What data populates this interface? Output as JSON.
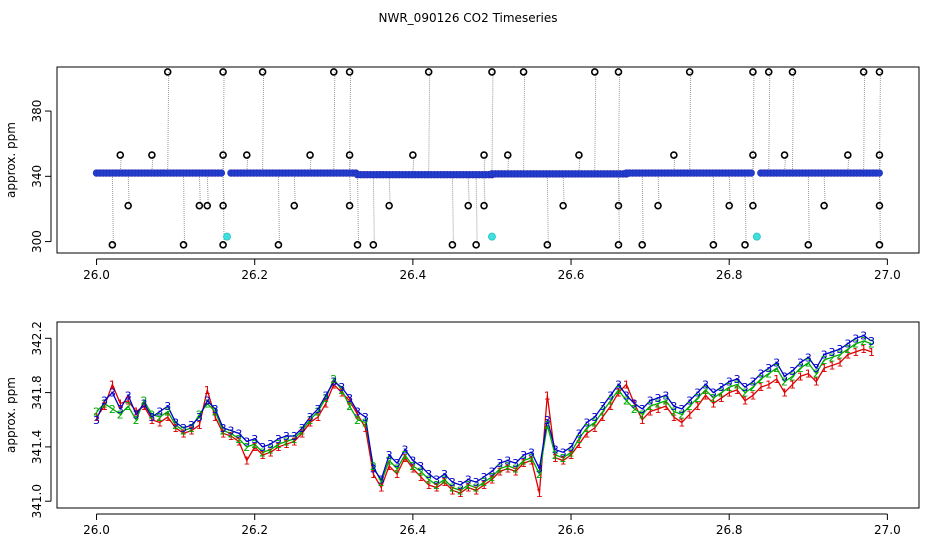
{
  "title": "NWR_090126  CO2 Timeseries",
  "chart_data": [
    {
      "type": "scatter",
      "ylabel": "approx. ppm",
      "xlim": [
        25.95,
        27.04
      ],
      "ylim": [
        293,
        407
      ],
      "xticks": [
        "26.0",
        "26.2",
        "26.4",
        "26.6",
        "26.8",
        "27.0"
      ],
      "xtick_values": [
        26.0,
        26.2,
        26.4,
        26.6,
        26.8,
        27.0
      ],
      "yticks": [
        "300",
        "340",
        "380"
      ],
      "ytick_values": [
        300,
        340,
        380
      ],
      "colors": {
        "open_circle": "#000000",
        "filled": "#1f3fd0",
        "highlight": "#40e0e0",
        "line": "#999999"
      },
      "baseline": [
        {
          "x_start": 26.0,
          "x_end": 26.16,
          "y": 342
        },
        {
          "x_start": 26.17,
          "x_end": 26.33,
          "y": 342
        },
        {
          "x_start": 26.33,
          "x_end": 26.5,
          "y": 341
        },
        {
          "x_start": 26.5,
          "x_end": 26.67,
          "y": 341.5
        },
        {
          "x_start": 26.67,
          "x_end": 26.83,
          "y": 342
        },
        {
          "x_start": 26.84,
          "x_end": 26.99,
          "y": 342
        }
      ],
      "outliers": [
        {
          "x": 26.02,
          "y": 298
        },
        {
          "x": 26.03,
          "y": 353
        },
        {
          "x": 26.04,
          "y": 322
        },
        {
          "x": 26.07,
          "y": 353
        },
        {
          "x": 26.09,
          "y": 404
        },
        {
          "x": 26.11,
          "y": 298
        },
        {
          "x": 26.13,
          "y": 322
        },
        {
          "x": 26.14,
          "y": 322
        },
        {
          "x": 26.16,
          "y": 298
        },
        {
          "x": 26.16,
          "y": 353
        },
        {
          "x": 26.16,
          "y": 322
        },
        {
          "x": 26.16,
          "y": 404
        },
        {
          "x": 26.19,
          "y": 353
        },
        {
          "x": 26.21,
          "y": 404
        },
        {
          "x": 26.23,
          "y": 298
        },
        {
          "x": 26.25,
          "y": 322
        },
        {
          "x": 26.27,
          "y": 353
        },
        {
          "x": 26.3,
          "y": 404
        },
        {
          "x": 26.32,
          "y": 404
        },
        {
          "x": 26.32,
          "y": 353
        },
        {
          "x": 26.32,
          "y": 322
        },
        {
          "x": 26.33,
          "y": 298
        },
        {
          "x": 26.35,
          "y": 298
        },
        {
          "x": 26.37,
          "y": 322
        },
        {
          "x": 26.4,
          "y": 353
        },
        {
          "x": 26.42,
          "y": 404
        },
        {
          "x": 26.45,
          "y": 298
        },
        {
          "x": 26.47,
          "y": 322
        },
        {
          "x": 26.48,
          "y": 298
        },
        {
          "x": 26.49,
          "y": 322
        },
        {
          "x": 26.49,
          "y": 353
        },
        {
          "x": 26.5,
          "y": 404
        },
        {
          "x": 26.52,
          "y": 353
        },
        {
          "x": 26.54,
          "y": 404
        },
        {
          "x": 26.57,
          "y": 298
        },
        {
          "x": 26.59,
          "y": 322
        },
        {
          "x": 26.61,
          "y": 353
        },
        {
          "x": 26.63,
          "y": 404
        },
        {
          "x": 26.66,
          "y": 404
        },
        {
          "x": 26.66,
          "y": 322
        },
        {
          "x": 26.66,
          "y": 298
        },
        {
          "x": 26.69,
          "y": 298
        },
        {
          "x": 26.71,
          "y": 322
        },
        {
          "x": 26.73,
          "y": 353
        },
        {
          "x": 26.75,
          "y": 404
        },
        {
          "x": 26.78,
          "y": 298
        },
        {
          "x": 26.8,
          "y": 322
        },
        {
          "x": 26.82,
          "y": 298
        },
        {
          "x": 26.83,
          "y": 322
        },
        {
          "x": 26.83,
          "y": 353
        },
        {
          "x": 26.83,
          "y": 404
        },
        {
          "x": 26.85,
          "y": 404
        },
        {
          "x": 26.87,
          "y": 353
        },
        {
          "x": 26.88,
          "y": 404
        },
        {
          "x": 26.9,
          "y": 298
        },
        {
          "x": 26.92,
          "y": 322
        },
        {
          "x": 26.95,
          "y": 353
        },
        {
          "x": 26.97,
          "y": 404
        },
        {
          "x": 26.99,
          "y": 404
        },
        {
          "x": 26.99,
          "y": 353
        },
        {
          "x": 26.99,
          "y": 322
        },
        {
          "x": 26.99,
          "y": 298
        }
      ],
      "highlights": [
        {
          "x": 26.165,
          "y": 303
        },
        {
          "x": 26.5,
          "y": 303
        },
        {
          "x": 26.835,
          "y": 303
        }
      ]
    },
    {
      "type": "line",
      "ylabel": "approx. ppm",
      "xlim": [
        25.95,
        27.04
      ],
      "ylim": [
        340.95,
        342.32
      ],
      "xticks": [
        "26.0",
        "26.2",
        "26.4",
        "26.6",
        "26.8",
        "27.0"
      ],
      "xtick_values": [
        26.0,
        26.2,
        26.4,
        26.6,
        26.8,
        27.0
      ],
      "yticks": [
        "341.0",
        "341.4",
        "341.8",
        "342.2"
      ],
      "ytick_values": [
        341.0,
        341.4,
        341.8,
        342.2
      ],
      "x": [
        26.0,
        26.01,
        26.02,
        26.03,
        26.04,
        26.05,
        26.06,
        26.07,
        26.08,
        26.09,
        26.1,
        26.11,
        26.12,
        26.13,
        26.14,
        26.15,
        26.16,
        26.17,
        26.18,
        26.19,
        26.2,
        26.21,
        26.22,
        26.23,
        26.24,
        26.25,
        26.26,
        26.27,
        26.28,
        26.29,
        26.3,
        26.31,
        26.32,
        26.33,
        26.34,
        26.35,
        26.36,
        26.37,
        26.38,
        26.39,
        26.4,
        26.41,
        26.42,
        26.43,
        26.44,
        26.45,
        26.46,
        26.47,
        26.48,
        26.49,
        26.5,
        26.51,
        26.52,
        26.53,
        26.54,
        26.55,
        26.56,
        26.57,
        26.58,
        26.59,
        26.6,
        26.61,
        26.62,
        26.63,
        26.64,
        26.65,
        26.66,
        26.67,
        26.68,
        26.69,
        26.7,
        26.71,
        26.72,
        26.73,
        26.74,
        26.75,
        26.76,
        26.77,
        26.78,
        26.79,
        26.8,
        26.81,
        26.82,
        26.83,
        26.84,
        26.85,
        26.86,
        26.87,
        26.88,
        26.89,
        26.9,
        26.91,
        26.92,
        26.93,
        26.94,
        26.95,
        26.96,
        26.97,
        26.98
      ],
      "series": [
        {
          "label_char": "1",
          "color": "#dd0000",
          "values": [
            341.62,
            341.7,
            341.86,
            341.72,
            341.74,
            341.66,
            341.7,
            341.6,
            341.58,
            341.62,
            341.54,
            341.5,
            341.52,
            341.56,
            341.82,
            341.62,
            341.5,
            341.48,
            341.44,
            341.3,
            341.4,
            341.34,
            341.36,
            341.4,
            341.42,
            341.44,
            341.5,
            341.58,
            341.62,
            341.72,
            341.86,
            341.8,
            341.74,
            341.64,
            341.54,
            341.2,
            341.1,
            341.26,
            341.2,
            341.32,
            341.24,
            341.18,
            341.12,
            341.1,
            341.14,
            341.08,
            341.06,
            341.1,
            341.08,
            341.12,
            341.16,
            341.22,
            341.24,
            341.22,
            341.28,
            341.3,
            341.06,
            341.78,
            341.32,
            341.3,
            341.34,
            341.42,
            341.5,
            341.54,
            341.62,
            341.7,
            341.8,
            341.86,
            341.72,
            341.6,
            341.66,
            341.68,
            341.7,
            341.62,
            341.58,
            341.64,
            341.7,
            341.78,
            341.72,
            341.76,
            341.8,
            341.82,
            341.74,
            341.78,
            341.84,
            341.86,
            341.9,
            341.8,
            341.86,
            341.92,
            341.94,
            341.88,
            341.98,
            342.0,
            342.02,
            342.08,
            342.1,
            342.12,
            342.1
          ]
        },
        {
          "label_char": "2",
          "color": "#00aa00",
          "values": [
            341.66,
            341.72,
            341.68,
            341.64,
            341.7,
            341.6,
            341.74,
            341.64,
            341.62,
            341.66,
            341.56,
            341.52,
            341.54,
            341.64,
            341.72,
            341.66,
            341.52,
            341.5,
            341.46,
            341.4,
            341.42,
            341.36,
            341.38,
            341.42,
            341.44,
            341.46,
            341.52,
            341.6,
            341.66,
            341.76,
            341.9,
            341.82,
            341.7,
            341.6,
            341.58,
            341.26,
            341.14,
            341.3,
            341.24,
            341.34,
            341.26,
            341.22,
            341.16,
            341.12,
            341.16,
            341.1,
            341.08,
            341.12,
            341.1,
            341.14,
            341.18,
            341.24,
            341.26,
            341.24,
            341.3,
            341.32,
            341.2,
            341.56,
            341.34,
            341.32,
            341.36,
            341.46,
            341.54,
            341.58,
            341.66,
            341.74,
            341.82,
            341.74,
            341.68,
            341.64,
            341.7,
            341.72,
            341.74,
            341.66,
            341.64,
            341.7,
            341.76,
            341.82,
            341.76,
            341.8,
            341.84,
            341.86,
            341.8,
            341.84,
            341.9,
            341.94,
            341.98,
            341.88,
            341.92,
            341.98,
            342.02,
            341.94,
            342.04,
            342.06,
            342.08,
            342.12,
            342.16,
            342.18,
            342.16
          ]
        },
        {
          "label_char": "3",
          "color": "#0000cc",
          "values": [
            341.6,
            341.74,
            341.8,
            341.68,
            341.78,
            341.64,
            341.72,
            341.62,
            341.66,
            341.7,
            341.58,
            341.54,
            341.56,
            341.62,
            341.74,
            341.68,
            341.54,
            341.52,
            341.5,
            341.44,
            341.46,
            341.4,
            341.42,
            341.46,
            341.48,
            341.48,
            341.54,
            341.62,
            341.68,
            341.78,
            341.88,
            341.84,
            341.76,
            341.66,
            341.62,
            341.24,
            341.16,
            341.34,
            341.28,
            341.38,
            341.3,
            341.26,
            341.2,
            341.16,
            341.2,
            341.14,
            341.12,
            341.16,
            341.14,
            341.18,
            341.22,
            341.28,
            341.3,
            341.28,
            341.34,
            341.36,
            341.24,
            341.6,
            341.38,
            341.36,
            341.4,
            341.5,
            341.58,
            341.62,
            341.7,
            341.78,
            341.86,
            341.78,
            341.72,
            341.68,
            341.74,
            341.76,
            341.78,
            341.7,
            341.68,
            341.74,
            341.8,
            341.86,
            341.8,
            341.84,
            341.88,
            341.9,
            341.84,
            341.88,
            341.94,
            341.98,
            342.02,
            341.92,
            341.96,
            342.02,
            342.06,
            341.98,
            342.08,
            342.1,
            342.12,
            342.16,
            342.2,
            342.22,
            342.18
          ]
        }
      ]
    }
  ]
}
